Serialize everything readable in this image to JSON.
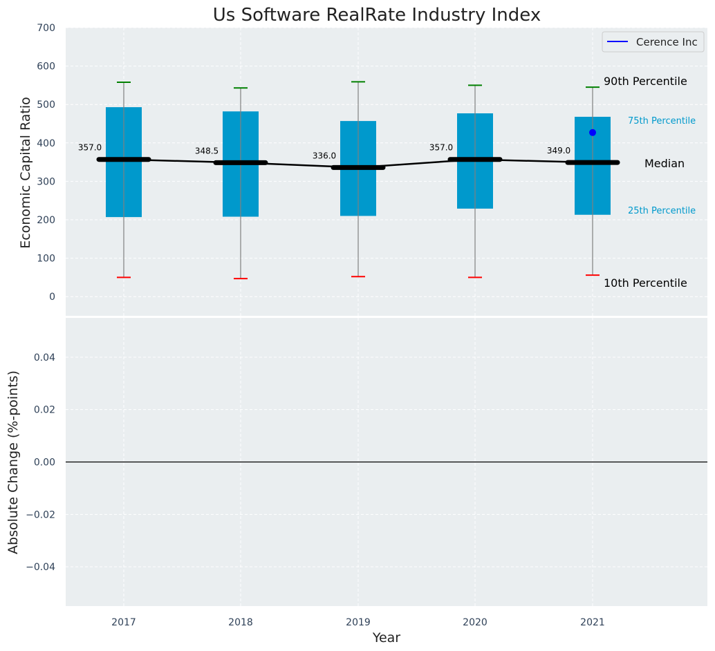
{
  "chart_data": [
    {
      "type": "box",
      "title": "Us Software RealRate Industry Index",
      "ylabel": "Economic Capital Ratio",
      "ylim": [
        -50,
        700
      ],
      "yticks": [
        0,
        100,
        200,
        300,
        400,
        500,
        600,
        700
      ],
      "grid": true,
      "categories": [
        "2017",
        "2018",
        "2019",
        "2020",
        "2021"
      ],
      "p10": [
        50,
        47,
        52,
        50,
        56
      ],
      "p25": [
        207,
        208,
        210,
        229,
        213
      ],
      "median": [
        357.0,
        348.5,
        336.0,
        357.0,
        349.0
      ],
      "p75": [
        493,
        482,
        457,
        477,
        468
      ],
      "p90": [
        558,
        543,
        559,
        550,
        545
      ],
      "median_labels": [
        "357.0",
        "348.5",
        "336.0",
        "357.0",
        "349.0"
      ],
      "company": {
        "name": "Cerence Inc",
        "year": "2021",
        "value": 427,
        "color": "#0000ff"
      },
      "legend": {
        "label": "Cerence Inc",
        "position": "top-right"
      },
      "annotations": {
        "p90": "90th Percentile",
        "p75": "75th Percentile",
        "median": "Median",
        "p25": "25th Percentile",
        "p10": "10th Percentile"
      },
      "colors": {
        "box": "#0099cc",
        "p90": "#008000",
        "p10": "#ff0000",
        "median": "#000000",
        "whisker": "#808080",
        "panel": "#eaeef0",
        "axis_text": "#2e4057"
      }
    },
    {
      "type": "line",
      "ylabel": "Absolute Change (%-points)",
      "xlabel": "Year",
      "ylim": [
        -0.055,
        0.055
      ],
      "yticks": [
        -0.04,
        -0.02,
        0.0,
        0.02,
        0.04
      ],
      "ytick_labels": [
        "−0.04",
        "−0.02",
        "0.00",
        "0.02",
        "0.04"
      ],
      "zero_line": 0,
      "grid": true,
      "categories": [
        "2017",
        "2018",
        "2019",
        "2020",
        "2021"
      ]
    }
  ]
}
